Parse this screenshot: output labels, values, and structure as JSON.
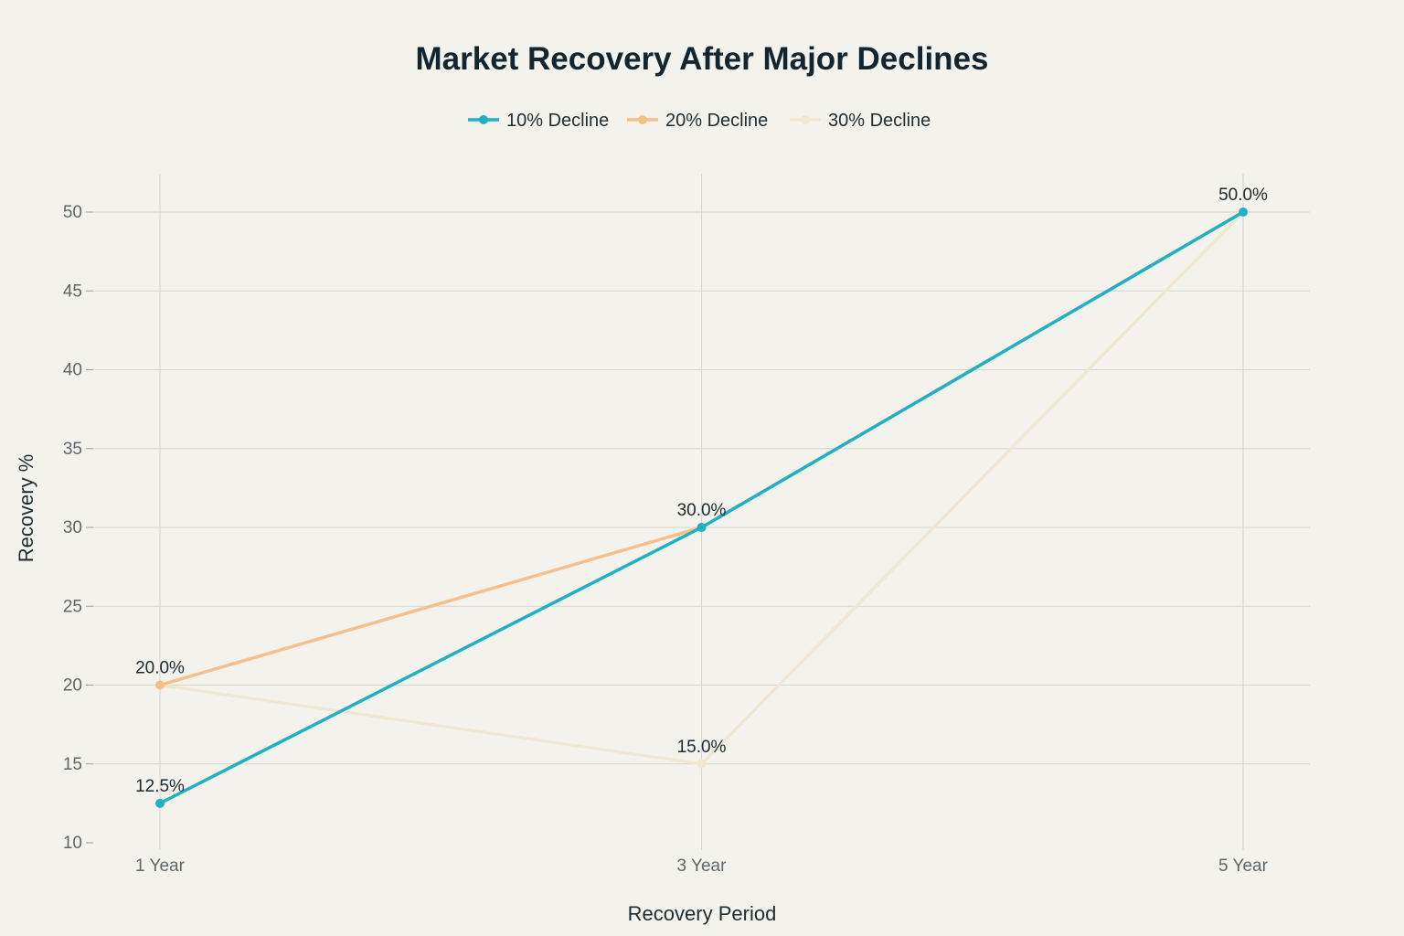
{
  "chart_data": {
    "type": "line",
    "title": "Market Recovery After Major Declines",
    "xlabel": "Recovery Period",
    "ylabel": "Recovery %",
    "categories": [
      "1 Year",
      "3 Year",
      "5 Year"
    ],
    "ylim": [
      10,
      52
    ],
    "yticks": [
      10,
      15,
      20,
      25,
      30,
      35,
      40,
      45,
      50
    ],
    "grid": true,
    "legend_position": "top-center",
    "series": [
      {
        "name": "10% Decline",
        "values": [
          12.5,
          30,
          50
        ],
        "color": "#1fb0c4",
        "labels": [
          "12.5%",
          "",
          ""
        ]
      },
      {
        "name": "20% Decline",
        "values": [
          20,
          30,
          50
        ],
        "color": "#f6bf8a",
        "labels": [
          "",
          "30.0%",
          ""
        ]
      },
      {
        "name": "30% Decline",
        "values": [
          20,
          15,
          50
        ],
        "color": "#efe7cf",
        "labels": [
          "20.0%",
          "15.0%",
          "50.0%"
        ]
      }
    ]
  }
}
